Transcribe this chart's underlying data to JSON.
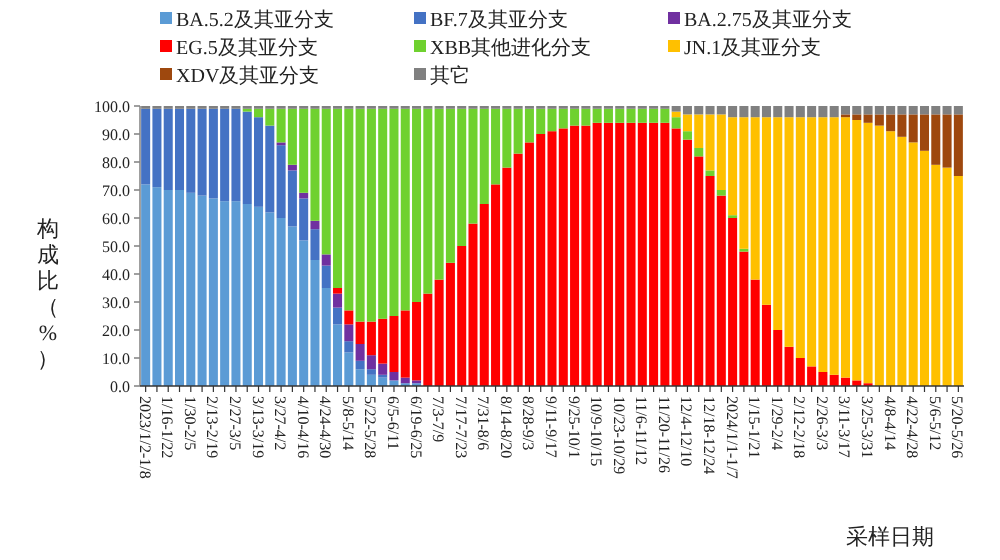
{
  "chart_data": {
    "type": "bar",
    "stacked": true,
    "xlabel": "采样日期",
    "ylabel": "构成比（%）",
    "legend": "top",
    "categories": [
      "2023/1/2-1/8",
      null,
      "1/16-1/22",
      null,
      "1/30-2/5",
      null,
      "2/13-2/19",
      null,
      "2/27-3/5",
      null,
      "3/13-3/19",
      null,
      "3/27-4/2",
      null,
      "4/10-4/16",
      null,
      "4/24-4/30",
      null,
      "5/8-5/14",
      null,
      "5/22-5/28",
      null,
      "6/5-6/11",
      null,
      "6/19-6/25",
      null,
      "7/3-7/9",
      null,
      "7/17-7/23",
      null,
      "7/31-8/6",
      null,
      "8/14-8/20",
      null,
      "8/28-9/3",
      null,
      "9/11-9/17",
      null,
      "9/25-10/1",
      null,
      "10/9-10/15",
      null,
      "10/23-10/29",
      null,
      "11/6-11/12",
      null,
      "11/20-11/26",
      null,
      "12/4-12/10",
      null,
      "12/18-12/24",
      null,
      "2024/1/1-1/7",
      null,
      "1/15-1/21",
      null,
      "1/29-2/4",
      null,
      "2/12-2/18",
      null,
      "2/26-3/3",
      null,
      "3/11-3/17",
      null,
      "3/25-3/31",
      null,
      "4/8-4/14",
      null,
      "4/22-4/28",
      null,
      "5/6-5/12",
      null,
      "5/20-5/26"
    ],
    "ylim": [
      0,
      100
    ],
    "yticks": [
      {
        "value": 0,
        "label": "0.0"
      },
      {
        "value": 10,
        "label": "10.0"
      },
      {
        "value": 20,
        "label": "20.0"
      },
      {
        "value": 30,
        "label": "30.0"
      },
      {
        "value": 40,
        "label": "40.0"
      },
      {
        "value": 50,
        "label": "50.0"
      },
      {
        "value": 60,
        "label": "60.0"
      },
      {
        "value": 70,
        "label": "70.0"
      },
      {
        "value": 80,
        "label": "80.0"
      },
      {
        "value": 90,
        "label": "90.0"
      },
      {
        "value": 100,
        "label": "100.0"
      }
    ],
    "series": [
      {
        "name": "BA.5.2及其亚分支",
        "color": "#5b9bd5",
        "values": [
          72,
          71,
          70,
          70,
          69,
          68,
          67,
          66,
          66,
          65,
          64,
          62,
          60,
          57,
          52,
          45,
          35,
          22,
          12,
          6,
          4,
          3,
          2,
          1,
          1,
          0,
          0,
          0,
          0,
          0,
          0,
          0,
          0,
          0,
          0,
          0,
          0,
          0,
          0,
          0,
          0,
          0,
          0,
          0,
          0,
          0,
          0,
          0,
          0,
          0,
          0,
          0,
          0,
          0,
          0,
          0,
          0,
          0,
          0,
          0,
          0,
          0,
          0,
          0,
          0,
          0,
          0,
          0,
          0,
          0,
          0,
          0,
          0
        ]
      },
      {
        "name": "BF.7及其亚分支",
        "color": "#4472c4",
        "values": [
          27,
          28,
          29,
          29,
          30,
          31,
          32,
          33,
          33,
          33,
          32,
          31,
          26,
          20,
          15,
          11,
          8,
          6,
          4,
          3,
          2,
          1,
          0,
          0,
          0,
          0,
          0,
          0,
          0,
          0,
          0,
          0,
          0,
          0,
          0,
          0,
          0,
          0,
          0,
          0,
          0,
          0,
          0,
          0,
          0,
          0,
          0,
          0,
          0,
          0,
          0,
          0,
          0,
          0,
          0,
          0,
          0,
          0,
          0,
          0,
          0,
          0,
          0,
          0,
          0,
          0,
          0,
          0,
          0,
          0,
          0,
          0,
          0
        ]
      },
      {
        "name": "BA.2.75及其亚分支",
        "color": "#7030a0",
        "values": [
          0,
          0,
          0,
          0,
          0,
          0,
          0,
          0,
          0,
          0,
          0,
          0,
          1,
          2,
          2,
          3,
          4,
          5,
          6,
          6,
          5,
          4,
          3,
          2,
          1,
          0,
          0,
          0,
          0,
          0,
          0,
          0,
          0,
          0,
          0,
          0,
          0,
          0,
          0,
          0,
          0,
          0,
          0,
          0,
          0,
          0,
          0,
          0,
          0,
          0,
          0,
          0,
          0,
          0,
          0,
          0,
          0,
          0,
          0,
          0,
          0,
          0,
          0,
          0,
          0,
          0,
          0,
          0,
          0,
          0,
          0,
          0,
          0
        ]
      },
      {
        "name": "EG.5及其亚分支",
        "color": "#ff0000",
        "values": [
          0,
          0,
          0,
          0,
          0,
          0,
          0,
          0,
          0,
          0,
          0,
          0,
          0,
          0,
          0,
          0,
          0,
          2,
          5,
          8,
          12,
          16,
          20,
          24,
          28,
          33,
          38,
          44,
          50,
          58,
          65,
          72,
          78,
          83,
          87,
          90,
          91,
          92,
          93,
          93,
          94,
          94,
          94,
          94,
          94,
          94,
          94,
          92,
          88,
          82,
          75,
          68,
          60,
          48,
          38,
          29,
          20,
          14,
          10,
          7,
          5,
          4,
          3,
          2,
          1,
          0,
          0,
          0,
          0,
          0,
          0,
          0,
          0
        ]
      },
      {
        "name": "XBB其他进化分支",
        "color": "#6fd12f",
        "values": [
          0,
          0,
          0,
          0,
          0,
          0,
          0,
          0,
          0,
          1,
          3,
          6,
          12,
          20,
          30,
          40,
          52,
          64,
          72,
          76,
          76,
          75,
          74,
          72,
          69,
          66,
          61,
          55,
          49,
          41,
          34,
          27,
          21,
          16,
          12,
          9,
          8,
          7,
          6,
          6,
          5,
          5,
          5,
          5,
          5,
          5,
          5,
          4,
          3,
          3,
          2,
          2,
          1,
          1,
          0,
          0,
          0,
          0,
          0,
          0,
          0,
          0,
          0,
          0,
          0,
          0,
          0,
          0,
          0,
          0,
          0,
          0,
          0
        ]
      },
      {
        "name": "JN.1及其亚分支",
        "color": "#ffc000",
        "values": [
          0,
          0,
          0,
          0,
          0,
          0,
          0,
          0,
          0,
          0,
          0,
          0,
          0,
          0,
          0,
          0,
          0,
          0,
          0,
          0,
          0,
          0,
          0,
          0,
          0,
          0,
          0,
          0,
          0,
          0,
          0,
          0,
          0,
          0,
          0,
          0,
          0,
          0,
          0,
          0,
          0,
          0,
          0,
          0,
          0,
          0,
          0,
          2,
          6,
          12,
          20,
          27,
          35,
          47,
          58,
          67,
          76,
          82,
          86,
          89,
          91,
          92,
          93,
          93,
          93,
          93,
          91,
          89,
          87,
          84,
          79,
          78,
          75
        ]
      },
      {
        "name": "XDV及其亚分支",
        "color": "#9e480e",
        "values": [
          0,
          0,
          0,
          0,
          0,
          0,
          0,
          0,
          0,
          0,
          0,
          0,
          0,
          0,
          0,
          0,
          0,
          0,
          0,
          0,
          0,
          0,
          0,
          0,
          0,
          0,
          0,
          0,
          0,
          0,
          0,
          0,
          0,
          0,
          0,
          0,
          0,
          0,
          0,
          0,
          0,
          0,
          0,
          0,
          0,
          0,
          0,
          0,
          0,
          0,
          0,
          0,
          0,
          0,
          0,
          0,
          0,
          0,
          0,
          0,
          0,
          0,
          1,
          2,
          3,
          4,
          6,
          8,
          10,
          13,
          18,
          19,
          22
        ]
      },
      {
        "name": "其它",
        "color": "#808080",
        "values": [
          1,
          1,
          1,
          1,
          1,
          1,
          1,
          1,
          1,
          1,
          1,
          1,
          1,
          1,
          1,
          1,
          1,
          1,
          1,
          1,
          1,
          1,
          1,
          1,
          1,
          1,
          1,
          1,
          1,
          1,
          1,
          1,
          1,
          1,
          1,
          1,
          1,
          1,
          1,
          1,
          1,
          1,
          1,
          1,
          1,
          1,
          1,
          2,
          3,
          3,
          3,
          3,
          4,
          4,
          4,
          4,
          4,
          4,
          4,
          4,
          4,
          4,
          3,
          3,
          3,
          3,
          3,
          3,
          3,
          3,
          3,
          3,
          3
        ]
      }
    ]
  }
}
